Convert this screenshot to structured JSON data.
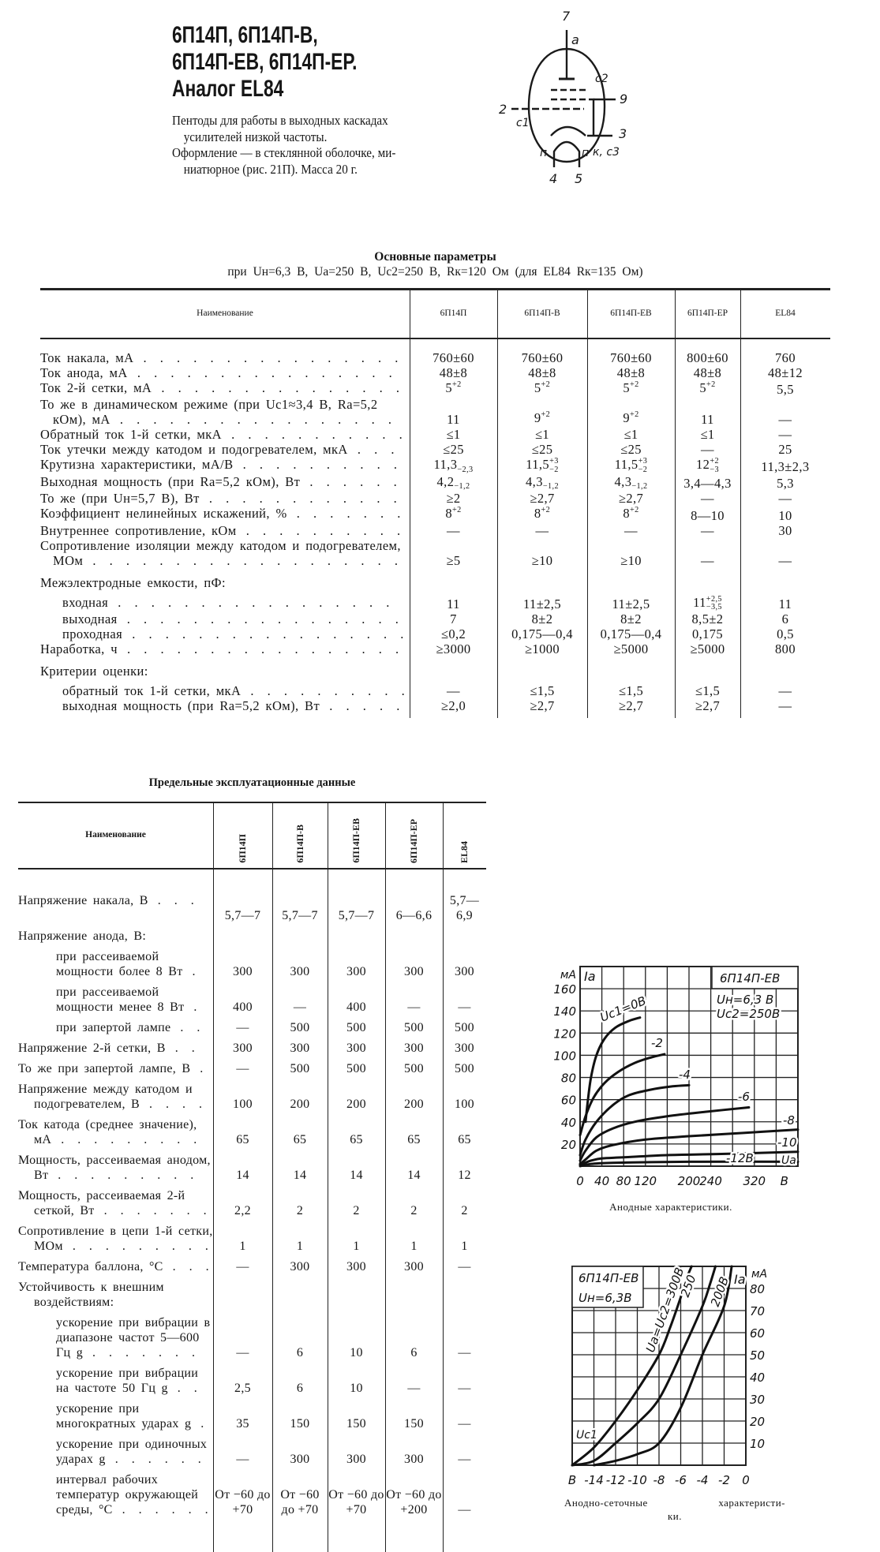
{
  "header": {
    "title_lines": [
      "6П14П, 6П14П-В,",
      "6П14П-ЕВ, 6П14П-ЕР.",
      "Аналог EL84"
    ],
    "description": [
      "Пентоды для работы в выходных каскадах",
      "усилителей низкой частоты.",
      "Оформление — в стеклянной оболочке, ми-",
      "ниатюрное (рис. 21П). Масса 20 г."
    ]
  },
  "tube_diagram": {
    "labels": {
      "pin7": "7",
      "anode": "a",
      "grid2": "c2",
      "pin9": "9",
      "pin2": "2",
      "grid1": "c1",
      "pin3": "3",
      "cathode": "к, c3",
      "heater_left": "п",
      "heater_right": "п",
      "pin4": "4",
      "pin5": "5"
    }
  },
  "table1": {
    "title": "Основные параметры",
    "conditions": "при Uн=6,3 В,  Uа=250 В,  Uc2=250 В,  Rк=120 Ом  (для  EL84  Rк=135 Ом)",
    "columns": [
      "Наименование",
      "6П14П",
      "6П14П-В",
      "6П14П-ЕВ",
      "6П14П-ЕР",
      "EL84"
    ],
    "rows": [
      {
        "label": "Ток накала, мА",
        "values": [
          "760±60",
          "760±60",
          "760±60",
          "800±60",
          "760"
        ]
      },
      {
        "label": "Ток анода, мА",
        "values": [
          "48±8",
          "48±8",
          "48±8",
          "48±8",
          "48±12"
        ]
      },
      {
        "label": "Ток 2-й сетки, мА",
        "values": [
          {
            "v": "5",
            "sup": "+2"
          },
          {
            "v": "5",
            "sup": "+2"
          },
          {
            "v": "5",
            "sup": "+2"
          },
          {
            "v": "5",
            "sup": "+2"
          },
          "5,5"
        ]
      },
      {
        "label": "То же в динамическом режиме (при Uc1≈3,4 В, Rа=5,2 кОм), мА",
        "values": [
          "11",
          {
            "v": "9",
            "sup": "+2"
          },
          {
            "v": "9",
            "sup": "+2"
          },
          "11",
          "—"
        ]
      },
      {
        "label": "Обратный ток 1-й сетки, мкА",
        "values": [
          "≤1",
          "≤1",
          "≤1",
          "≤1",
          "—"
        ]
      },
      {
        "label": "Ток утечки между катодом и подогревателем, мкА",
        "values": [
          "≤25",
          "≤25",
          "≤25",
          "—",
          "25"
        ]
      },
      {
        "label": "Крутизна характеристики, мА/В",
        "values": [
          {
            "v": "11,3",
            "sub": "−2,3"
          },
          {
            "v": "11,5",
            "sup": "+3",
            "sub": "−2"
          },
          {
            "v": "11,5",
            "sup": "+3",
            "sub": "−2"
          },
          {
            "v": "12",
            "sup": "+2",
            "sub": "−3"
          },
          "11,3±2,3"
        ]
      },
      {
        "label": "Выходная мощность (при Rа=5,2 кОм), Вт",
        "values": [
          {
            "v": "4,2",
            "sub": "−1,2"
          },
          {
            "v": "4,3",
            "sub": "−1,2"
          },
          {
            "v": "4,3",
            "sub": "−1,2"
          },
          "3,4—4,3",
          "5,3"
        ]
      },
      {
        "label": "То же (при Uн=5,7 В), Вт",
        "values": [
          "≥2",
          "≥2,7",
          "≥2,7",
          "—",
          "—"
        ]
      },
      {
        "label": "Коэффициент нелинейных искажений, %",
        "values": [
          {
            "v": "8",
            "sup": "+2"
          },
          {
            "v": "8",
            "sup": "+2"
          },
          {
            "v": "8",
            "sup": "+2"
          },
          "8—10",
          "10"
        ]
      },
      {
        "label": "Внутреннее сопротивление, кОм",
        "values": [
          "—",
          "—",
          "—",
          "—",
          "30"
        ]
      },
      {
        "label": "Сопротивление изоляции между катодом и подогревателем, МОм",
        "values": [
          "≥5",
          "≥10",
          "≥10",
          "—",
          "—"
        ]
      },
      {
        "label": "Межэлектродные емкости, пФ:",
        "section": true,
        "values": []
      },
      {
        "label": "входная",
        "sub": true,
        "values": [
          "11",
          "11±2,5",
          "11±2,5",
          {
            "v": "11",
            "sup": "+2,5",
            "sub": "−3,5"
          },
          "11"
        ]
      },
      {
        "label": "выходная",
        "sub": true,
        "values": [
          "7",
          "8±2",
          "8±2",
          "8,5±2",
          "6"
        ]
      },
      {
        "label": "проходная",
        "sub": true,
        "values": [
          "≤0,2",
          "0,175—0,4",
          "0,175—0,4",
          "0,175",
          "0,5"
        ]
      },
      {
        "label": "Наработка, ч",
        "values": [
          "≥3000",
          "≥1000",
          "≥5000",
          "≥5000",
          "800"
        ]
      },
      {
        "label": "Критерии оценки:",
        "section": true,
        "values": []
      },
      {
        "label": "обратный ток 1-й сетки, мкА",
        "sub": true,
        "values": [
          "—",
          "≤1,5",
          "≤1,5",
          "≤1,5",
          "—"
        ]
      },
      {
        "label": "выходная мощность (при Rа=5,2 кОм), Вт",
        "sub": true,
        "values": [
          "≥2,0",
          "≥2,7",
          "≥2,7",
          "≥2,7",
          "—"
        ]
      }
    ]
  },
  "table2": {
    "title": "Предельные эксплуатационные данные",
    "columns": [
      "Наименование",
      "6П14П",
      "6П14П-В",
      "6П14П-ЕВ",
      "6П14П-ЕР",
      "EL84"
    ],
    "rows": [
      {
        "label": "Напряжение накала, В",
        "values": [
          "5,7—7",
          "5,7—7",
          "5,7—7",
          "6—6,6",
          "5,7— 6,9"
        ]
      },
      {
        "label": "Напряжение анода, В:",
        "values": []
      },
      {
        "label": "при рассеиваемой мощности более 8 Вт",
        "sub": true,
        "values": [
          "300",
          "300",
          "300",
          "300",
          "300"
        ]
      },
      {
        "label": "при рассеиваемой мощности менее 8 Вт",
        "sub": true,
        "values": [
          "400",
          "—",
          "400",
          "—",
          "—"
        ]
      },
      {
        "label": "при запертой лампе",
        "sub": true,
        "values": [
          "—",
          "500",
          "500",
          "500",
          "500"
        ]
      },
      {
        "label": "Напряжение 2-й сетки, В",
        "values": [
          "300",
          "300",
          "300",
          "300",
          "300"
        ]
      },
      {
        "label": "То же при запертой лампе, В",
        "values": [
          "—",
          "500",
          "500",
          "500",
          "500"
        ]
      },
      {
        "label": "Напряжение между катодом и подогревателем, В",
        "values": [
          "100",
          "200",
          "200",
          "200",
          "100"
        ]
      },
      {
        "label": "Ток катода (среднее значение), мА",
        "values": [
          "65",
          "65",
          "65",
          "65",
          "65"
        ]
      },
      {
        "label": "Мощность, рассеиваемая анодом, Вт",
        "values": [
          "14",
          "14",
          "14",
          "14",
          "12"
        ]
      },
      {
        "label": "Мощность, рассеиваемая 2-й сеткой, Вт",
        "values": [
          "2,2",
          "2",
          "2",
          "2",
          "2"
        ]
      },
      {
        "label": "Сопротивление в цепи 1-й сетки, МОм",
        "values": [
          "1",
          "1",
          "1",
          "1",
          "1"
        ]
      },
      {
        "label": "Температура баллона, °С",
        "values": [
          "—",
          "300",
          "300",
          "300",
          "—"
        ]
      },
      {
        "label": "Устойчивость к внешним воздействиям:",
        "values": []
      },
      {
        "label": "ускорение при вибрации в диапазоне частот 5—600 Гц g",
        "sub": true,
        "values": [
          "—",
          "6",
          "10",
          "6",
          "—"
        ]
      },
      {
        "label": "ускорение при вибрации на частоте 50 Гц g",
        "sub": true,
        "values": [
          "2,5",
          "6",
          "10",
          "—",
          "—"
        ]
      },
      {
        "label": "ускорение при многократных ударах g",
        "sub": true,
        "values": [
          "35",
          "150",
          "150",
          "150",
          "—"
        ]
      },
      {
        "label": "ускорение при одиночных ударах g",
        "sub": true,
        "values": [
          "—",
          "300",
          "300",
          "300",
          "—"
        ]
      },
      {
        "label": "интервал рабочих температур окружающей среды, °С",
        "sub": true,
        "values": [
          "От −60 до +70",
          "От −60 до +70",
          "От −60 до +70",
          "От −60 до +200",
          "—"
        ]
      }
    ]
  },
  "chart_data": [
    {
      "type": "line",
      "caption": "Анодные характеристики.",
      "box_title": "6П14П-ЕВ",
      "conditions": [
        "Uн=6,3 В",
        "Uc2=250В"
      ],
      "ylabel": "Iа",
      "y_unit": "мА",
      "xlabel": "Uа",
      "x_unit": "В",
      "xlim": [
        0,
        400
      ],
      "ylim": [
        0,
        180
      ],
      "x_ticks": [
        0,
        40,
        80,
        120,
        200,
        240,
        320
      ],
      "y_ticks": [
        20,
        40,
        60,
        80,
        100,
        120,
        140,
        160
      ],
      "grid": true,
      "series": [
        {
          "name": "Uc1=0В",
          "points": [
            [
              10,
              40
            ],
            [
              14,
              58
            ],
            [
              20,
              80
            ],
            [
              30,
              100
            ],
            [
              45,
              115
            ],
            [
              65,
              125
            ],
            [
              90,
              131
            ],
            [
              110,
              134
            ]
          ]
        },
        {
          "name": "-2",
          "points": [
            [
              0,
              28
            ],
            [
              10,
              45
            ],
            [
              25,
              62
            ],
            [
              45,
              75
            ],
            [
              70,
              85
            ],
            [
              100,
              93
            ],
            [
              130,
              98
            ],
            [
              155,
              101
            ]
          ]
        },
        {
          "name": "-4",
          "points": [
            [
              0,
              10
            ],
            [
              10,
              24
            ],
            [
              30,
              40
            ],
            [
              60,
              55
            ],
            [
              90,
              64
            ],
            [
              130,
              69
            ],
            [
              170,
              72
            ],
            [
              200,
              73
            ]
          ]
        },
        {
          "name": "-6",
          "points": [
            [
              0,
              5
            ],
            [
              10,
              14
            ],
            [
              30,
              26
            ],
            [
              60,
              34
            ],
            [
              100,
              40
            ],
            [
              160,
              45
            ],
            [
              230,
              49
            ],
            [
              310,
              53
            ]
          ]
        },
        {
          "name": "-8",
          "points": [
            [
              0,
              2
            ],
            [
              10,
              6
            ],
            [
              30,
              14
            ],
            [
              60,
              19
            ],
            [
              120,
              24
            ],
            [
              200,
              27
            ],
            [
              300,
              30
            ],
            [
              400,
              33
            ]
          ]
        },
        {
          "name": "-10",
          "points": [
            [
              0,
              1
            ],
            [
              20,
              5
            ],
            [
              40,
              7
            ],
            [
              80,
              8
            ],
            [
              160,
              10
            ],
            [
              260,
              11
            ],
            [
              400,
              13
            ]
          ]
        },
        {
          "name": "-12В",
          "points": [
            [
              0,
              0
            ],
            [
              20,
              2
            ],
            [
              60,
              3
            ],
            [
              200,
              4
            ],
            [
              400,
              4
            ]
          ]
        }
      ]
    },
    {
      "type": "line",
      "caption": "Анодно-сеточные характеристи-",
      "caption2": "ки.",
      "box_title": "6П14П-ЕВ",
      "conditions": [
        "Uн=6,3В"
      ],
      "ylabel": "Iа",
      "y_unit": "мА",
      "xlabel": "Uc1",
      "x_unit": "В",
      "xlim": [
        -16,
        0
      ],
      "ylim": [
        0,
        90
      ],
      "x_ticks": [
        -14,
        -12,
        -10,
        -8,
        -6,
        -4,
        -2,
        0
      ],
      "y_ticks": [
        10,
        20,
        30,
        40,
        50,
        60,
        70,
        80
      ],
      "y_axis": "right",
      "grid": true,
      "series": [
        {
          "name": "Uа=Uc2=300В",
          "points": [
            [
              -16,
              0
            ],
            [
              -14,
              8
            ],
            [
              -12,
              20
            ],
            [
              -10,
              34
            ],
            [
              -8,
              50
            ],
            [
              -7,
              62
            ],
            [
              -6,
              76
            ],
            [
              -5.5,
              84
            ],
            [
              -5,
              90
            ]
          ]
        },
        {
          "name": "250",
          "points": [
            [
              -16,
              0
            ],
            [
              -14,
              2
            ],
            [
              -12,
              10
            ],
            [
              -10,
              19
            ],
            [
              -8,
              30
            ],
            [
              -6,
              50
            ],
            [
              -4,
              72
            ],
            [
              -3.3,
              82
            ],
            [
              -2.8,
              90
            ]
          ]
        },
        {
          "name": "200В",
          "points": [
            [
              -14,
              0
            ],
            [
              -12,
              2
            ],
            [
              -10,
              5
            ],
            [
              -8,
              10
            ],
            [
              -6,
              26
            ],
            [
              -4,
              50
            ],
            [
              -2,
              72
            ],
            [
              -1.3,
              90
            ]
          ]
        }
      ]
    }
  ]
}
